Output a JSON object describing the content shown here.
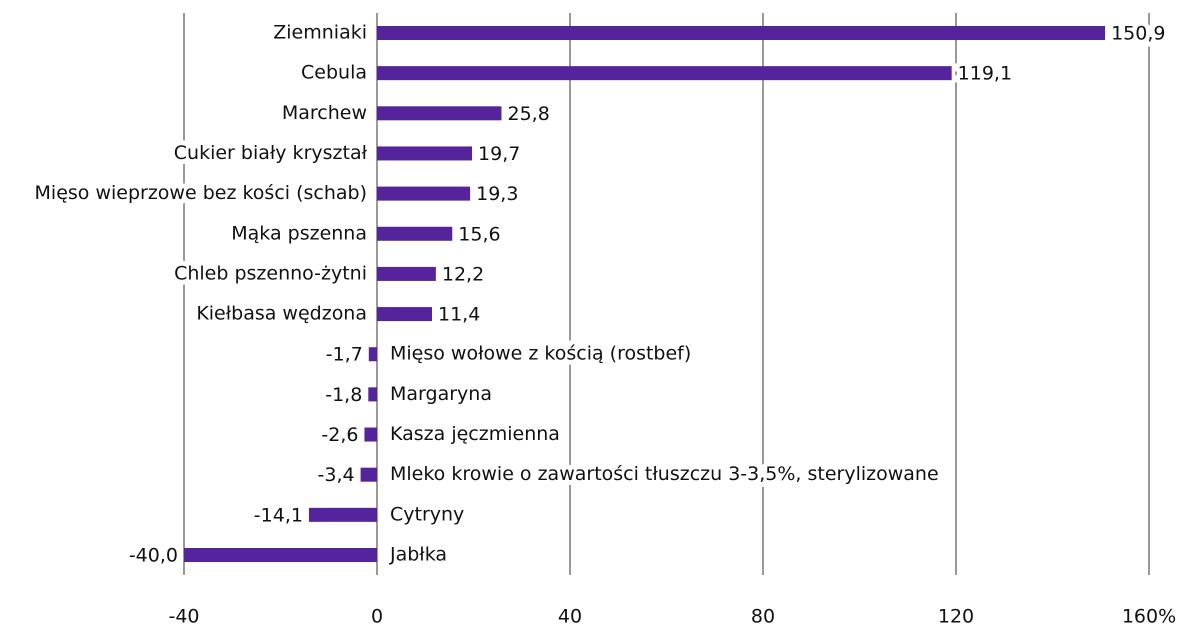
{
  "chart_data": {
    "type": "bar",
    "orientation": "horizontal",
    "categories": [
      "Ziemniaki",
      "Cebula",
      "Marchew",
      "Cukier biały kryształ",
      "Mięso wieprzowe bez kości (schab)",
      "Mąka pszenna",
      "Chleb pszenno-żytni",
      "Kiełbasa wędzona",
      "Mięso wołowe z kością (rostbef)",
      "Margaryna",
      "Kasza jęczmienna",
      "Mleko krowie o zawartości tłuszczu 3-3,5%, sterylizowane",
      "Cytryny",
      "Jabłka"
    ],
    "values": [
      150.9,
      119.1,
      25.8,
      19.7,
      19.3,
      15.6,
      12.2,
      11.4,
      -1.7,
      -1.8,
      -2.6,
      -3.4,
      -14.1,
      -40.0
    ],
    "value_labels": [
      "150,9",
      "119,1",
      "25,8",
      "19,7",
      "19,3",
      "15,6",
      "12,2",
      "11,4",
      "-1,7",
      "-1,8",
      "-2,6",
      "-3,4",
      "-14,1",
      "-40,0"
    ],
    "color": "#55239b",
    "xlim": [
      -40,
      160
    ],
    "xticks": [
      -40,
      0,
      40,
      80,
      120,
      {
        "value": 160,
        "label": "160%"
      }
    ],
    "grid": true
  }
}
